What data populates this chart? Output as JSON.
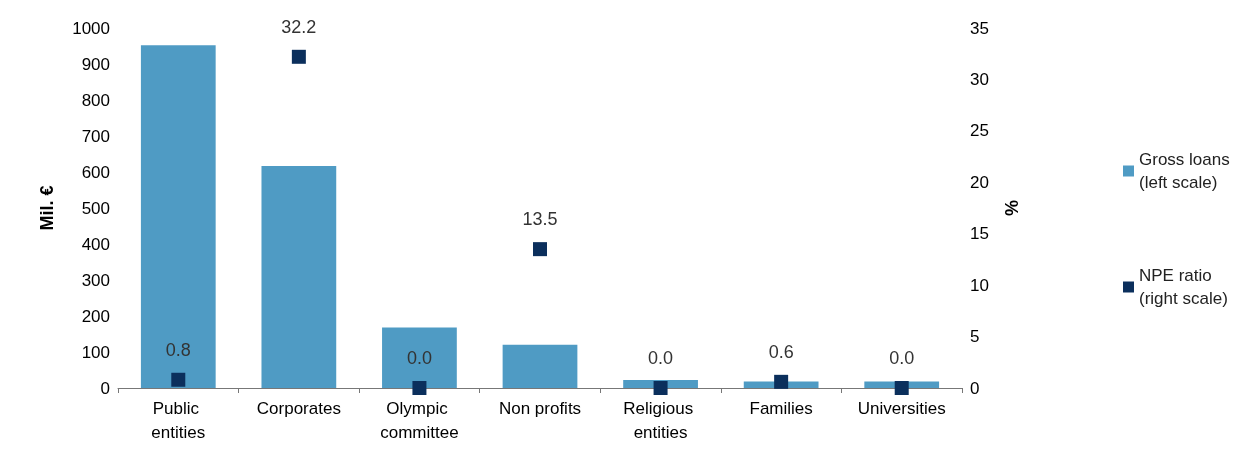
{
  "chart_data": {
    "type": "bar",
    "categories": [
      "Public entities",
      "Corporates",
      "Olympic committee",
      "Non profits",
      "Religious entities",
      "Families",
      "Universities"
    ],
    "series": [
      {
        "name": "Gross loans (left scale)",
        "color": "#4f9bc4",
        "values": [
          952,
          617,
          168,
          120,
          22,
          18,
          18
        ]
      },
      {
        "name": "NPE ratio (right scale)",
        "type": "scatter",
        "axis": "y2",
        "color": "#0b2f5c",
        "marker": "square",
        "values": [
          0.8,
          32.2,
          0,
          13.5,
          0,
          0.6,
          0
        ],
        "value_labels": [
          "0.8",
          "32.2",
          "0.0",
          "13.5",
          "0.0",
          "0.6",
          "0.0"
        ]
      }
    ],
    "ylabel": "Mil. €",
    "y2label": "%",
    "ylim": [
      0,
      1000
    ],
    "yticks": [
      0,
      100,
      200,
      300,
      400,
      500,
      600,
      700,
      800,
      900,
      1000
    ],
    "y2lim": [
      0,
      35
    ],
    "y2ticks": [
      0,
      5,
      10,
      15,
      20,
      25,
      30,
      35
    ],
    "grid": false,
    "legend": "right"
  }
}
